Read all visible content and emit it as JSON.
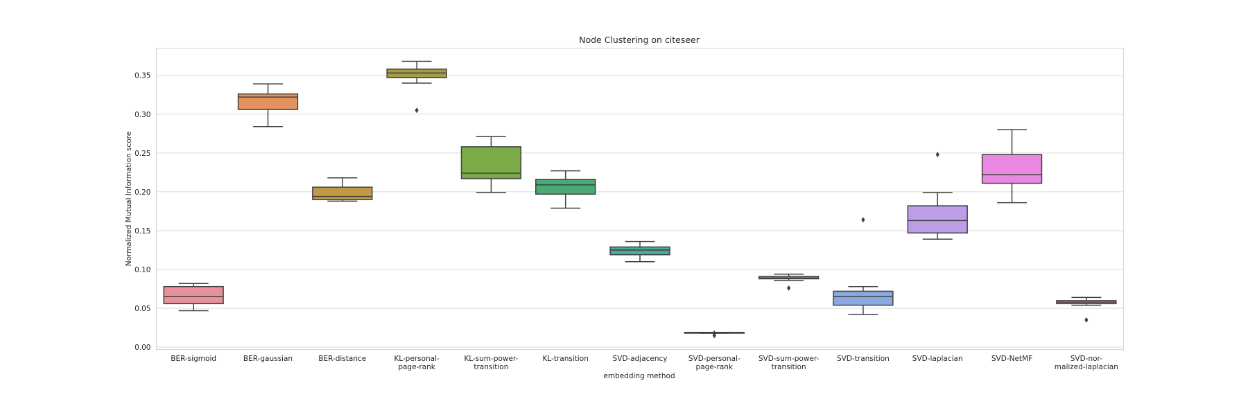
{
  "chart_data": {
    "type": "box",
    "title": "Node Clustering on citeseer",
    "xlabel": "embedding method",
    "ylabel": "Normalized Mutual Information score",
    "ylim": [
      -0.003,
      0.385
    ],
    "yticks": [
      "0.00",
      "0.05",
      "0.10",
      "0.15",
      "0.20",
      "0.25",
      "0.30",
      "0.35"
    ],
    "grid": true,
    "categories": [
      {
        "label_lines": [
          "BER-sigmoid"
        ],
        "color": "#e8919b",
        "whisker_low": 0.047,
        "q1": 0.056,
        "median": 0.065,
        "q3": 0.078,
        "whisker_high": 0.082,
        "outliers": []
      },
      {
        "label_lines": [
          "BER-gaussian"
        ],
        "color": "#e3935e",
        "whisker_low": 0.284,
        "q1": 0.306,
        "median": 0.322,
        "q3": 0.326,
        "whisker_high": 0.339,
        "outliers": []
      },
      {
        "label_lines": [
          "BER-distance"
        ],
        "color": "#c19a47",
        "whisker_low": 0.188,
        "q1": 0.19,
        "median": 0.194,
        "q3": 0.206,
        "whisker_high": 0.218,
        "outliers": []
      },
      {
        "label_lines": [
          "KL-personal-",
          "page-rank"
        ],
        "color": "#a59c46",
        "whisker_low": 0.34,
        "q1": 0.347,
        "median": 0.353,
        "q3": 0.358,
        "whisker_high": 0.368,
        "outliers": [
          0.305
        ]
      },
      {
        "label_lines": [
          "KL-sum-power-",
          "transition"
        ],
        "color": "#7aab46",
        "whisker_low": 0.199,
        "q1": 0.217,
        "median": 0.224,
        "q3": 0.258,
        "whisker_high": 0.271,
        "outliers": []
      },
      {
        "label_lines": [
          "KL-transition"
        ],
        "color": "#49ab74",
        "whisker_low": 0.179,
        "q1": 0.197,
        "median": 0.209,
        "q3": 0.216,
        "whisker_high": 0.227,
        "outliers": []
      },
      {
        "label_lines": [
          "SVD-adjacency"
        ],
        "color": "#4aab9a",
        "whisker_low": 0.11,
        "q1": 0.119,
        "median": 0.125,
        "q3": 0.129,
        "whisker_high": 0.136,
        "outliers": []
      },
      {
        "label_lines": [
          "SVD-personal-",
          "page-rank"
        ],
        "color": "#4eaab5",
        "whisker_low": 0.018,
        "q1": 0.018,
        "median": 0.019,
        "q3": 0.019,
        "whisker_high": 0.019,
        "outliers": [
          0.015,
          0.018
        ]
      },
      {
        "label_lines": [
          "SVD-sum-power-",
          "transition"
        ],
        "color": "#55a6cc",
        "whisker_low": 0.086,
        "q1": 0.088,
        "median": 0.089,
        "q3": 0.091,
        "whisker_high": 0.094,
        "outliers": [
          0.076
        ]
      },
      {
        "label_lines": [
          "SVD-transition"
        ],
        "color": "#8aa8e0",
        "whisker_low": 0.042,
        "q1": 0.054,
        "median": 0.065,
        "q3": 0.072,
        "whisker_high": 0.078,
        "outliers": [
          0.164
        ]
      },
      {
        "label_lines": [
          "SVD-laplacian"
        ],
        "color": "#bc9ee8",
        "whisker_low": 0.139,
        "q1": 0.147,
        "median": 0.163,
        "q3": 0.182,
        "whisker_high": 0.199,
        "outliers": [
          0.248
        ]
      },
      {
        "label_lines": [
          "SVD-NetMF"
        ],
        "color": "#e888e0",
        "whisker_low": 0.186,
        "q1": 0.211,
        "median": 0.222,
        "q3": 0.248,
        "whisker_high": 0.28,
        "outliers": []
      },
      {
        "label_lines": [
          "SVD-nor-",
          "malized-laplacian"
        ],
        "color": "#e884b5",
        "whisker_low": 0.054,
        "q1": 0.056,
        "median": 0.058,
        "q3": 0.06,
        "whisker_high": 0.064,
        "outliers": [
          0.035
        ]
      }
    ]
  }
}
